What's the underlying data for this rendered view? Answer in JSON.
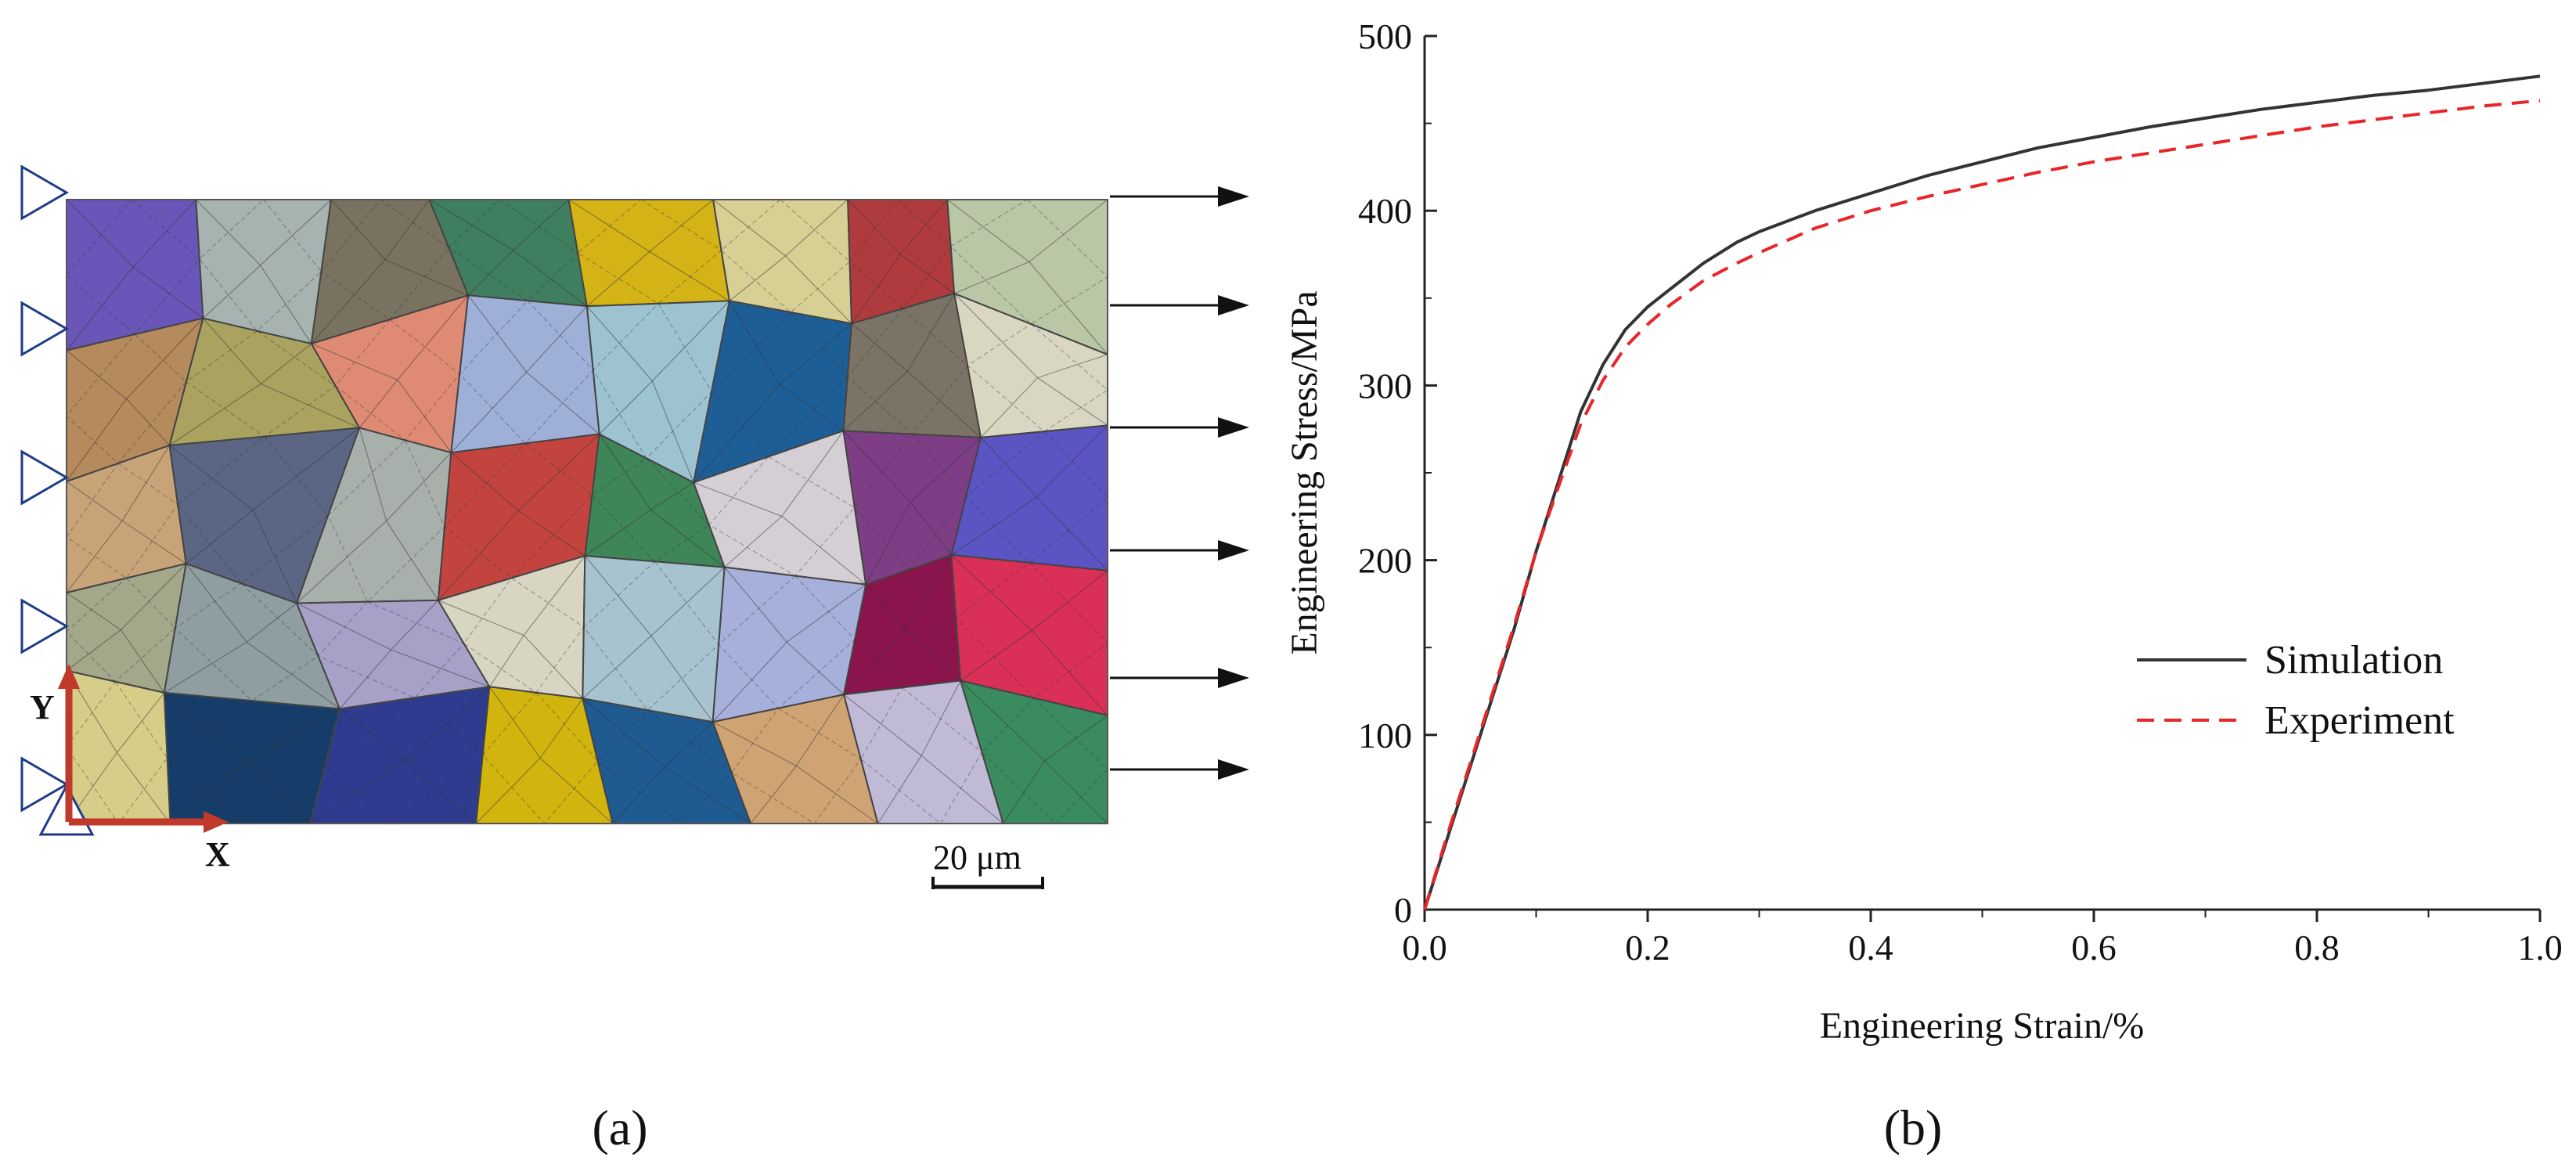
{
  "panel_a": {
    "label": "(a)",
    "axis_y_label": "Y",
    "axis_x_label": "X",
    "scale_bar_label": "20 μm",
    "grain_colors": [
      "#6a55b8",
      "#a7b3b0",
      "#7a7260",
      "#3f7e5f",
      "#d4b316",
      "#d7cf93",
      "#b03b3e",
      "#b9c7a6",
      "#b58a5d",
      "#a9a35f",
      "#df8b73",
      "#9eb0d8",
      "#9cc3cf",
      "#1e5e97",
      "#7b7466",
      "#d9d7c1",
      "#c9a378",
      "#5a6684",
      "#a8b0ac",
      "#c3443f",
      "#3e8558",
      "#d3cfd4",
      "#7d3e86",
      "#5b54c3",
      "#a3a88a",
      "#8f9ea0",
      "#a7a1c8",
      "#d8d5c3",
      "#a6c3cf",
      "#a7b0da",
      "#8c144c",
      "#da2f56",
      "#d6cd88",
      "#163c69",
      "#2f3b8f",
      "#d2b40f",
      "#1f5a91",
      "#cfa373",
      "#c0bad6",
      "#3b8b60"
    ]
  },
  "panel_b": {
    "label": "(b)"
  },
  "chart_data": {
    "type": "line",
    "xlabel": "Engineering Strain/%",
    "ylabel": "Engineering Stress/MPa",
    "xlim": [
      0.0,
      1.0
    ],
    "ylim": [
      0,
      500
    ],
    "xticks": [
      "0.0",
      "0.2",
      "0.4",
      "0.6",
      "0.8",
      "1.0"
    ],
    "yticks": [
      "0",
      "100",
      "200",
      "300",
      "400",
      "500"
    ],
    "legend_position": "lower-right",
    "grid": false,
    "series": [
      {
        "name": "Simulation",
        "color": "#333333",
        "dash": "solid",
        "x": [
          0.0,
          0.02,
          0.05,
          0.08,
          0.1,
          0.12,
          0.14,
          0.16,
          0.18,
          0.2,
          0.22,
          0.25,
          0.28,
          0.3,
          0.35,
          0.4,
          0.45,
          0.5,
          0.55,
          0.6,
          0.65,
          0.7,
          0.75,
          0.8,
          0.85,
          0.9,
          0.95,
          1.0
        ],
        "y": [
          0,
          40,
          100,
          160,
          205,
          245,
          285,
          312,
          332,
          345,
          355,
          370,
          382,
          388,
          400,
          410,
          420,
          428,
          436,
          442,
          448,
          453,
          458,
          462,
          466,
          469,
          473,
          477
        ]
      },
      {
        "name": "Experiment",
        "color": "#e8262a",
        "dash": "dashed",
        "x": [
          0.0,
          0.02,
          0.05,
          0.08,
          0.1,
          0.12,
          0.14,
          0.16,
          0.18,
          0.2,
          0.22,
          0.25,
          0.28,
          0.3,
          0.35,
          0.4,
          0.45,
          0.5,
          0.55,
          0.6,
          0.65,
          0.7,
          0.75,
          0.8,
          0.85,
          0.9,
          0.95,
          1.0
        ],
        "y": [
          0,
          42,
          102,
          162,
          205,
          242,
          278,
          303,
          322,
          335,
          346,
          360,
          370,
          376,
          390,
          400,
          408,
          415,
          422,
          428,
          433,
          438,
          443,
          448,
          452,
          456,
          460,
          463
        ]
      }
    ]
  }
}
